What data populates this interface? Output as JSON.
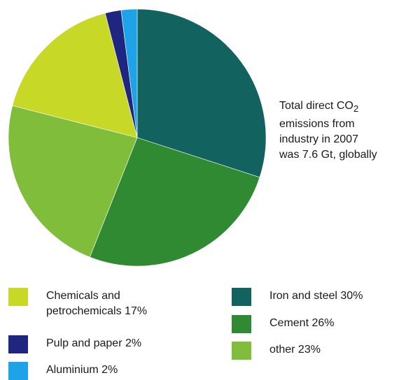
{
  "chart_data": {
    "type": "pie",
    "title": "",
    "slices": [
      {
        "label": "Iron and steel",
        "value": 30,
        "color": "#12635f"
      },
      {
        "label": "Cement",
        "value": 26,
        "color": "#2f8a32"
      },
      {
        "label": "other",
        "value": 23,
        "color": "#7fbd3a"
      },
      {
        "label": "Chemicals and petrochemicals",
        "value": 17,
        "color": "#c7d926"
      },
      {
        "label": "Pulp and paper",
        "value": 2,
        "color": "#1f2680"
      },
      {
        "label": "Aluminium",
        "value": 2,
        "color": "#1ea3e8"
      }
    ],
    "legend": [
      {
        "text": "Chemicals and petrochemicals 17%",
        "color": "#c7d926"
      },
      {
        "text": "Pulp and paper 2%",
        "color": "#1f2680"
      },
      {
        "text": "Aluminium 2%",
        "color": "#1ea3e8"
      },
      {
        "text": "Iron and steel 30%",
        "color": "#12635f"
      },
      {
        "text": "Cement 26%",
        "color": "#2f8a32"
      },
      {
        "text": "other 23%",
        "color": "#7fbd3a"
      }
    ],
    "annotation": {
      "line1_before": "Total direct CO",
      "line1_sub": "2",
      "line2": "emissions from",
      "line3": "industry in 2007",
      "line4": "was 7.6 Gt, globally"
    }
  }
}
